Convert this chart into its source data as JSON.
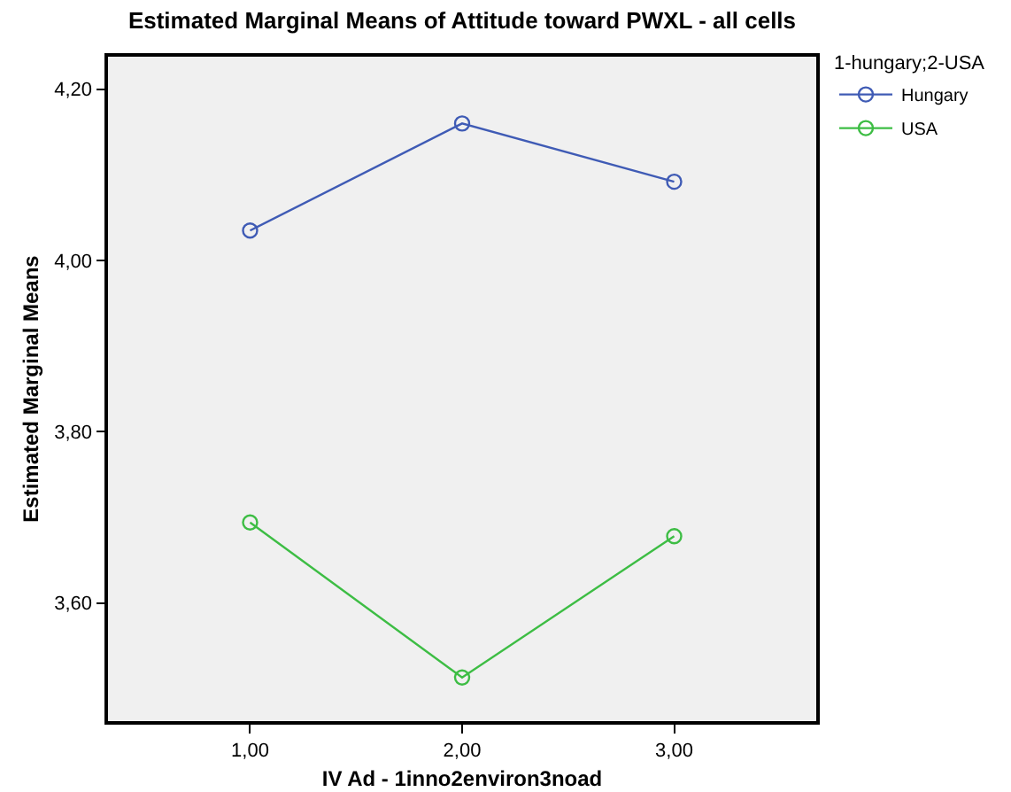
{
  "chart_data": {
    "type": "line",
    "title": "Estimated Marginal Means of Attitude toward PWXL - all cells",
    "xlabel": "IV Ad - 1inno2environ3noad",
    "ylabel": "Estimated Marginal Means",
    "legend_title": "1-hungary;2-USA",
    "x": [
      1,
      2,
      3
    ],
    "series": [
      {
        "name": "Hungary",
        "color": "#3f5bb5",
        "values": [
          4.035,
          4.16,
          4.092
        ]
      },
      {
        "name": "USA",
        "color": "#3dbd44",
        "values": [
          3.694,
          3.513,
          3.678
        ]
      }
    ],
    "xlim": [
      0.33,
      3.67
    ],
    "xticks": [
      {
        "value": 1,
        "label": "1,00"
      },
      {
        "value": 2,
        "label": "2,00"
      },
      {
        "value": 3,
        "label": "3,00"
      }
    ],
    "ylim": [
      3.462,
      4.238
    ],
    "yticks": [
      {
        "value": 3.6,
        "label": "3,60"
      },
      {
        "value": 3.8,
        "label": "3,80"
      },
      {
        "value": 4.0,
        "label": "4,00"
      },
      {
        "value": 4.2,
        "label": "4,20"
      }
    ],
    "grid": false,
    "legend": "top right",
    "marker": "circle",
    "line_style": "solid"
  }
}
